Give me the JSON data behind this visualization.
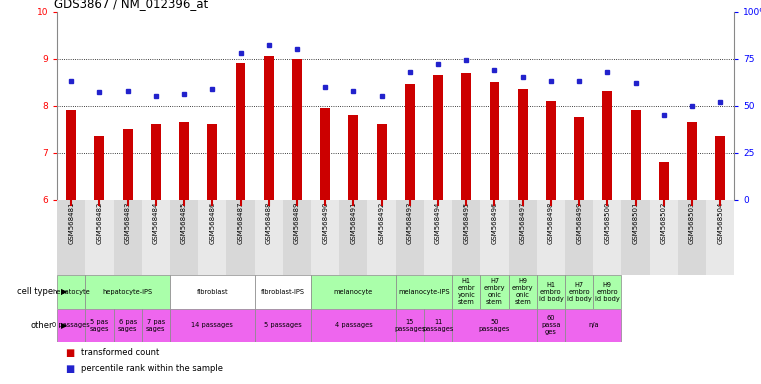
{
  "title": "GDS3867 / NM_012396_at",
  "samples": [
    "GSM568481",
    "GSM568482",
    "GSM568483",
    "GSM568484",
    "GSM568485",
    "GSM568486",
    "GSM568487",
    "GSM568488",
    "GSM568489",
    "GSM568490",
    "GSM568491",
    "GSM568492",
    "GSM568493",
    "GSM568494",
    "GSM568495",
    "GSM568496",
    "GSM568497",
    "GSM568498",
    "GSM568499",
    "GSM568500",
    "GSM568501",
    "GSM568502",
    "GSM568503",
    "GSM568504"
  ],
  "bar_values": [
    7.9,
    7.35,
    7.5,
    7.6,
    7.65,
    7.6,
    8.9,
    9.05,
    9.0,
    7.95,
    7.8,
    7.6,
    8.45,
    8.65,
    8.7,
    8.5,
    8.35,
    8.1,
    7.75,
    8.3,
    7.9,
    6.8,
    7.65,
    7.35
  ],
  "dot_values": [
    63,
    57,
    58,
    55,
    56,
    59,
    78,
    82,
    80,
    60,
    58,
    55,
    68,
    72,
    74,
    69,
    65,
    63,
    63,
    68,
    62,
    45,
    50,
    52
  ],
  "bar_color": "#cc0000",
  "dot_color": "#2222cc",
  "bar_bottom": 6.0,
  "ylim_left": [
    6,
    10
  ],
  "ylim_right": [
    0,
    100
  ],
  "cell_groups": [
    {
      "label": "hepatocyte",
      "start": 0,
      "end": 1,
      "color": "#aaffaa"
    },
    {
      "label": "hepatocyte-iPS",
      "start": 1,
      "end": 4,
      "color": "#aaffaa"
    },
    {
      "label": "fibroblast",
      "start": 4,
      "end": 7,
      "color": "#ffffff"
    },
    {
      "label": "fibroblast-IPS",
      "start": 7,
      "end": 9,
      "color": "#ffffff"
    },
    {
      "label": "melanocyte",
      "start": 9,
      "end": 12,
      "color": "#aaffaa"
    },
    {
      "label": "melanocyte-IPS",
      "start": 12,
      "end": 14,
      "color": "#aaffaa"
    },
    {
      "label": "H1\nembr\nyonic\nstem",
      "start": 14,
      "end": 15,
      "color": "#aaffaa"
    },
    {
      "label": "H7\nembry\nonic\nstem",
      "start": 15,
      "end": 16,
      "color": "#aaffaa"
    },
    {
      "label": "H9\nembry\nonic\nstem",
      "start": 16,
      "end": 17,
      "color": "#aaffaa"
    },
    {
      "label": "H1\nembro\nid body",
      "start": 17,
      "end": 18,
      "color": "#aaffaa"
    },
    {
      "label": "H7\nembro\nid body",
      "start": 18,
      "end": 19,
      "color": "#aaffaa"
    },
    {
      "label": "H9\nembro\nid body",
      "start": 19,
      "end": 20,
      "color": "#aaffaa"
    }
  ],
  "other_groups": [
    {
      "label": "0 passages",
      "start": 0,
      "end": 1,
      "color": "#ee66ee"
    },
    {
      "label": "5 pas\nsages",
      "start": 1,
      "end": 2,
      "color": "#ee66ee"
    },
    {
      "label": "6 pas\nsages",
      "start": 2,
      "end": 3,
      "color": "#ee66ee"
    },
    {
      "label": "7 pas\nsages",
      "start": 3,
      "end": 4,
      "color": "#ee66ee"
    },
    {
      "label": "14 passages",
      "start": 4,
      "end": 7,
      "color": "#ee66ee"
    },
    {
      "label": "5 passages",
      "start": 7,
      "end": 9,
      "color": "#ee66ee"
    },
    {
      "label": "4 passages",
      "start": 9,
      "end": 12,
      "color": "#ee66ee"
    },
    {
      "label": "15\npassages",
      "start": 12,
      "end": 13,
      "color": "#ee66ee"
    },
    {
      "label": "11\npassages",
      "start": 13,
      "end": 14,
      "color": "#ee66ee"
    },
    {
      "label": "50\npassages",
      "start": 14,
      "end": 17,
      "color": "#ee66ee"
    },
    {
      "label": "60\npassa\nges",
      "start": 17,
      "end": 18,
      "color": "#ee66ee"
    },
    {
      "label": "n/a",
      "start": 18,
      "end": 20,
      "color": "#ee66ee"
    }
  ],
  "xtick_bg_color": "#d8d8d8",
  "grid_color": "#333333",
  "spine_color": "#888888"
}
